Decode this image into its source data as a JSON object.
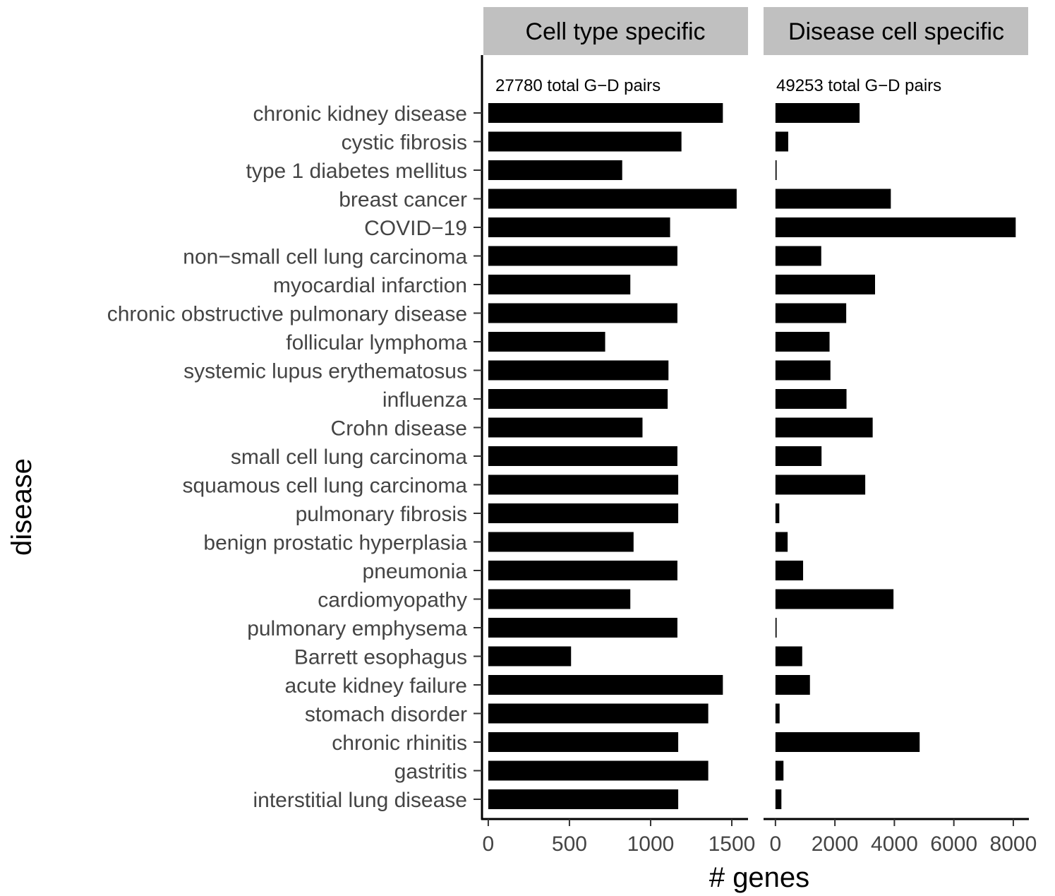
{
  "chart_data": {
    "type": "bar",
    "orientation": "horizontal",
    "ylabel": "disease",
    "xlabel": "# genes",
    "categories": [
      "chronic kidney disease",
      "cystic fibrosis",
      "type 1 diabetes mellitus",
      "breast cancer",
      "COVID−19",
      "non−small cell lung carcinoma",
      "myocardial infarction",
      "chronic obstructive pulmonary disease",
      "follicular lymphoma",
      "systemic lupus erythematosus",
      "influenza",
      "Crohn disease",
      "small cell lung carcinoma",
      "squamous cell lung carcinoma",
      "pulmonary fibrosis",
      "benign prostatic hyperplasia",
      "pneumonia",
      "cardiomyopathy",
      "pulmonary emphysema",
      "Barrett esophagus",
      "acute kidney failure",
      "stomach disorder",
      "chronic rhinitis",
      "gastritis",
      "interstitial lung disease"
    ],
    "panels": [
      {
        "strip": "Cell type specific",
        "annotation": "27780 total G−D pairs",
        "xlim": [
          -30,
          1600
        ],
        "xticks": [
          0,
          500,
          1000,
          1500
        ],
        "xtick_labels": [
          "0",
          "500",
          "1000",
          "1500"
        ],
        "values": [
          1445,
          1190,
          825,
          1530,
          1120,
          1165,
          875,
          1165,
          720,
          1110,
          1105,
          950,
          1165,
          1170,
          1170,
          895,
          1165,
          875,
          1165,
          510,
          1445,
          1355,
          1170,
          1355,
          1170
        ]
      },
      {
        "strip": "Disease cell specific",
        "annotation": "49253 total G−D pairs",
        "xlim": [
          -400,
          8500
        ],
        "xticks": [
          0,
          2000,
          4000,
          6000,
          8000
        ],
        "xtick_labels": [
          "0",
          "2000",
          "4000",
          "6000",
          "8000"
        ],
        "values": [
          2830,
          430,
          40,
          3880,
          8080,
          1540,
          3350,
          2380,
          1820,
          1850,
          2390,
          3270,
          1550,
          3020,
          130,
          410,
          930,
          3970,
          40,
          900,
          1160,
          140,
          4850,
          270,
          200
        ]
      }
    ],
    "grid": false,
    "legend": "none"
  }
}
